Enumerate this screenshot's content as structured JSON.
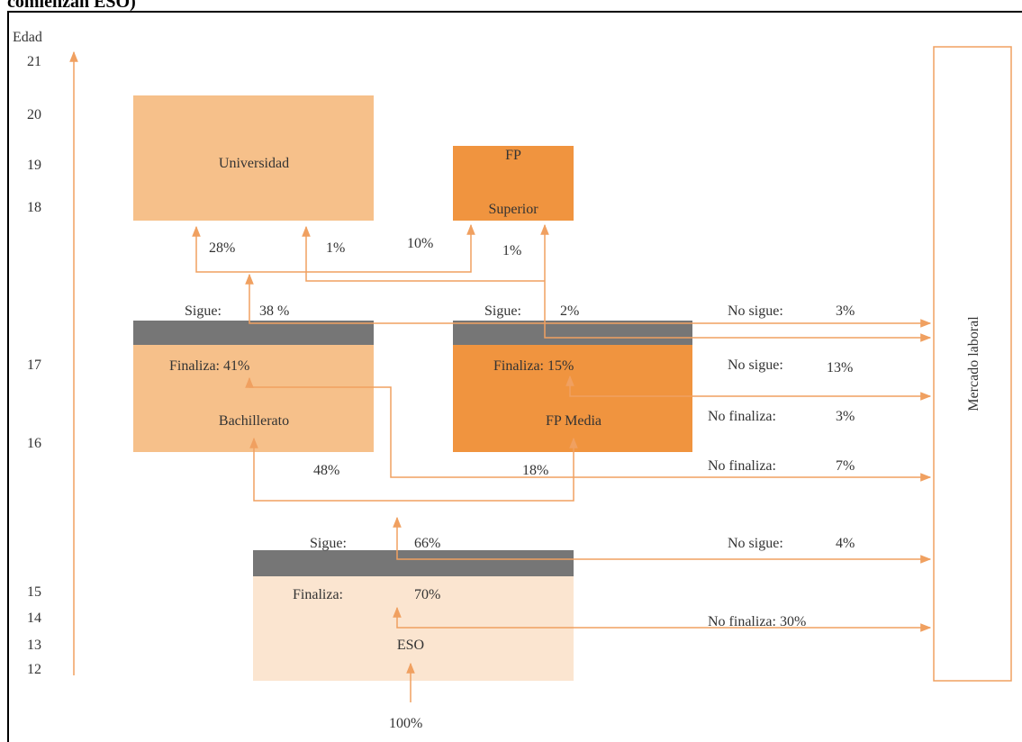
{
  "header": {
    "title": "comienzan ESO)"
  },
  "axis": {
    "label": "Edad",
    "ages": [
      "21",
      "20",
      "19",
      "18",
      "17",
      "16",
      "15",
      "14",
      "13",
      "12"
    ]
  },
  "boxes": {
    "universidad": "Universidad",
    "fp_superior": [
      "FP",
      "Superior"
    ],
    "bachillerato": "Bachillerato",
    "fp_media": "FP Media",
    "eso": "ESO",
    "mercado": "Mercado laboral"
  },
  "labels": [
    "28%",
    "1%",
    "10%",
    "1%",
    "Sigue:",
    "38 %",
    "Sigue:",
    "2%",
    "No sigue:",
    "3%",
    "Finaliza: 41%",
    "Finaliza: 15%",
    "No sigue:",
    "13%",
    "No finaliza:",
    "3%",
    "48%",
    "18%",
    "No finaliza:",
    "7%",
    "Sigue:",
    "66%",
    "No sigue:",
    "4%",
    "Finaliza:",
    "70%",
    "No finaliza: 30%",
    "100%"
  ]
}
